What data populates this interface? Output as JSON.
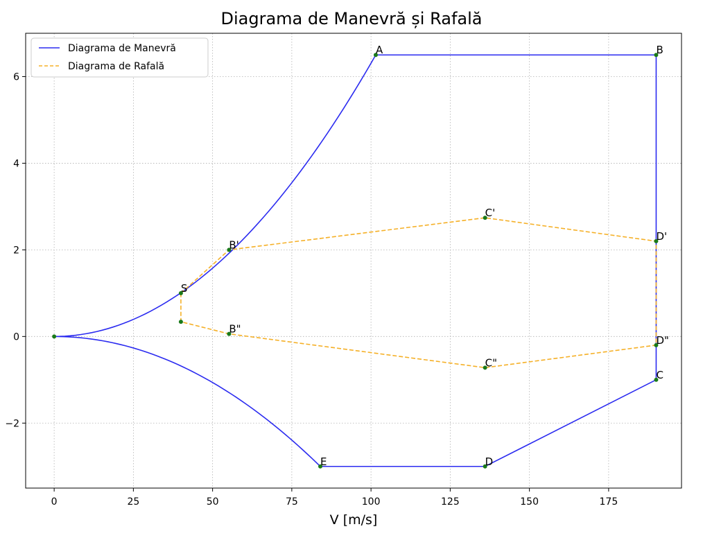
{
  "chart_data": {
    "type": "line",
    "title": "Diagrama de Manevră și Rafală",
    "xlabel": "V [m/s]",
    "ylabel": "",
    "xlim": [
      -9,
      198
    ],
    "ylim": [
      -3.5,
      7.0
    ],
    "xticks": [
      0,
      25,
      50,
      75,
      100,
      125,
      150,
      175
    ],
    "yticks": [
      -2,
      0,
      2,
      4,
      6
    ],
    "ytick_labels": [
      "−2",
      "0",
      "2",
      "4",
      "6"
    ],
    "grid": true,
    "legend_position": "top-left",
    "colors": {
      "maneuver": "#2b2bf0",
      "gust": "#f5b027",
      "point": "#1a7a1a"
    },
    "series": [
      {
        "name": "Diagrama de Manevră",
        "style": "solid",
        "color": "#2b2bf0",
        "upper_curve": {
          "x": [
            0,
            101.5
          ],
          "y": [
            0,
            6.5
          ],
          "shape": "quadratic"
        },
        "lower_curve": {
          "x": [
            0,
            84
          ],
          "y": [
            0,
            -3.0
          ],
          "shape": "quadratic"
        },
        "points": [
          {
            "x": 101.5,
            "y": 6.5
          },
          {
            "x": 190,
            "y": 6.5
          },
          {
            "x": 190,
            "y": -1.0
          },
          {
            "x": 136,
            "y": -3.0
          },
          {
            "x": 84,
            "y": -3.0
          }
        ]
      },
      {
        "name": "Diagrama de Rafală",
        "style": "dashed",
        "color": "#f5b027",
        "points": [
          {
            "x": 40,
            "y": 1.0
          },
          {
            "x": 55.2,
            "y": 2.0
          },
          {
            "x": 136,
            "y": 2.74
          },
          {
            "x": 190,
            "y": 2.2
          },
          {
            "x": 190,
            "y": -0.2
          },
          {
            "x": 136,
            "y": -0.72
          },
          {
            "x": 55.2,
            "y": 0.06
          },
          {
            "x": 40,
            "y": 0.34
          },
          {
            "x": 40,
            "y": 1.0
          }
        ]
      }
    ],
    "labeled_points": [
      {
        "label": "A",
        "x": 101.5,
        "y": 6.5
      },
      {
        "label": "B",
        "x": 190,
        "y": 6.5
      },
      {
        "label": "C",
        "x": 190,
        "y": -1.0
      },
      {
        "label": "D",
        "x": 136,
        "y": -3.0
      },
      {
        "label": "E",
        "x": 84,
        "y": -3.0
      },
      {
        "label": "S",
        "x": 40,
        "y": 1.0
      },
      {
        "label": "B'",
        "x": 55.2,
        "y": 2.0
      },
      {
        "label": "C'",
        "x": 136,
        "y": 2.74
      },
      {
        "label": "D'",
        "x": 190,
        "y": 2.2
      },
      {
        "label": "B\"",
        "x": 55.2,
        "y": 0.06
      },
      {
        "label": "C\"",
        "x": 136,
        "y": -0.72
      },
      {
        "label": "D\"",
        "x": 190,
        "y": -0.2
      }
    ],
    "unlabeled_points": [
      {
        "x": 0,
        "y": 0
      },
      {
        "x": 40,
        "y": 0.34
      }
    ]
  }
}
